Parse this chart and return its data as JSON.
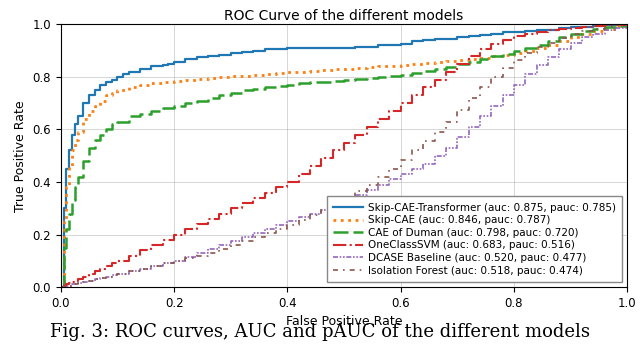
{
  "title": "ROC Curve of the different models",
  "xlabel": "False Positive Rate",
  "ylabel": "True Positive Rate",
  "caption": "Fig. 3: ROC curves, AUC and pAUC of the different models",
  "models": [
    {
      "name": "Skip-CAE-Transformer (auc: 0.875, pauc: 0.785)",
      "color": "#1f77b4",
      "linestyle": "-",
      "linewidth": 1.5,
      "fpr": [
        0.0,
        0.005,
        0.01,
        0.015,
        0.02,
        0.025,
        0.03,
        0.04,
        0.05,
        0.06,
        0.07,
        0.08,
        0.09,
        0.1,
        0.11,
        0.12,
        0.13,
        0.14,
        0.15,
        0.16,
        0.17,
        0.18,
        0.19,
        0.2,
        0.22,
        0.24,
        0.26,
        0.28,
        0.3,
        0.32,
        0.34,
        0.36,
        0.38,
        0.4,
        0.42,
        0.44,
        0.46,
        0.48,
        0.5,
        0.52,
        0.54,
        0.56,
        0.58,
        0.6,
        0.62,
        0.64,
        0.66,
        0.68,
        0.7,
        0.72,
        0.74,
        0.76,
        0.78,
        0.8,
        0.82,
        0.84,
        0.86,
        0.88,
        0.9,
        0.92,
        0.94,
        0.96,
        0.98,
        1.0
      ],
      "tpr": [
        0.0,
        0.3,
        0.45,
        0.52,
        0.58,
        0.62,
        0.65,
        0.7,
        0.73,
        0.75,
        0.77,
        0.78,
        0.79,
        0.8,
        0.81,
        0.82,
        0.82,
        0.83,
        0.83,
        0.84,
        0.84,
        0.845,
        0.85,
        0.855,
        0.87,
        0.875,
        0.88,
        0.885,
        0.89,
        0.895,
        0.9,
        0.905,
        0.905,
        0.91,
        0.91,
        0.91,
        0.91,
        0.91,
        0.91,
        0.915,
        0.915,
        0.92,
        0.92,
        0.925,
        0.935,
        0.94,
        0.945,
        0.945,
        0.95,
        0.955,
        0.96,
        0.965,
        0.97,
        0.97,
        0.975,
        0.98,
        0.98,
        0.985,
        0.99,
        0.99,
        0.995,
        0.997,
        0.998,
        1.0
      ]
    },
    {
      "name": "Skip-CAE (auc: 0.846, pauc: 0.787)",
      "color": "#ff7f0e",
      "linestyle": "dotted",
      "linewidth": 1.8,
      "fpr": [
        0.0,
        0.005,
        0.01,
        0.015,
        0.02,
        0.025,
        0.03,
        0.04,
        0.05,
        0.06,
        0.07,
        0.08,
        0.09,
        0.1,
        0.12,
        0.14,
        0.16,
        0.18,
        0.2,
        0.22,
        0.24,
        0.26,
        0.28,
        0.3,
        0.32,
        0.34,
        0.36,
        0.38,
        0.4,
        0.42,
        0.44,
        0.46,
        0.48,
        0.5,
        0.52,
        0.54,
        0.56,
        0.58,
        0.6,
        0.62,
        0.64,
        0.66,
        0.68,
        0.7,
        0.72,
        0.74,
        0.76,
        0.78,
        0.8,
        0.82,
        0.84,
        0.86,
        0.88,
        0.9,
        0.92,
        0.94,
        0.96,
        0.98,
        1.0
      ],
      "tpr": [
        0.0,
        0.25,
        0.38,
        0.46,
        0.52,
        0.56,
        0.59,
        0.64,
        0.67,
        0.69,
        0.71,
        0.73,
        0.74,
        0.75,
        0.76,
        0.77,
        0.775,
        0.78,
        0.785,
        0.79,
        0.793,
        0.796,
        0.799,
        0.802,
        0.805,
        0.808,
        0.811,
        0.814,
        0.817,
        0.82,
        0.823,
        0.826,
        0.829,
        0.832,
        0.835,
        0.837,
        0.84,
        0.842,
        0.845,
        0.848,
        0.852,
        0.856,
        0.86,
        0.864,
        0.868,
        0.872,
        0.878,
        0.884,
        0.89,
        0.9,
        0.91,
        0.92,
        0.935,
        0.95,
        0.963,
        0.975,
        0.984,
        0.992,
        1.0
      ]
    },
    {
      "name": "CAE of Duman (auc: 0.798, pauc: 0.720)",
      "color": "#2ca02c",
      "linestyle": "--",
      "linewidth": 1.8,
      "fpr": [
        0.0,
        0.005,
        0.01,
        0.015,
        0.02,
        0.025,
        0.03,
        0.04,
        0.05,
        0.06,
        0.07,
        0.08,
        0.09,
        0.1,
        0.12,
        0.14,
        0.16,
        0.18,
        0.2,
        0.22,
        0.24,
        0.26,
        0.28,
        0.3,
        0.32,
        0.34,
        0.36,
        0.38,
        0.4,
        0.42,
        0.44,
        0.46,
        0.48,
        0.5,
        0.52,
        0.54,
        0.56,
        0.58,
        0.6,
        0.62,
        0.64,
        0.66,
        0.68,
        0.7,
        0.72,
        0.74,
        0.76,
        0.78,
        0.8,
        0.82,
        0.84,
        0.86,
        0.88,
        0.9,
        0.92,
        0.94,
        0.96,
        0.98,
        1.0
      ],
      "tpr": [
        0.0,
        0.15,
        0.22,
        0.28,
        0.33,
        0.38,
        0.42,
        0.48,
        0.53,
        0.56,
        0.58,
        0.6,
        0.62,
        0.63,
        0.65,
        0.66,
        0.67,
        0.68,
        0.69,
        0.7,
        0.71,
        0.72,
        0.73,
        0.74,
        0.75,
        0.755,
        0.76,
        0.765,
        0.77,
        0.775,
        0.78,
        0.782,
        0.785,
        0.788,
        0.792,
        0.796,
        0.8,
        0.804,
        0.808,
        0.815,
        0.822,
        0.83,
        0.838,
        0.848,
        0.858,
        0.868,
        0.878,
        0.888,
        0.898,
        0.91,
        0.922,
        0.936,
        0.95,
        0.963,
        0.974,
        0.982,
        0.989,
        0.995,
        1.0
      ]
    },
    {
      "name": "OneClassSVM (auc: 0.683, pauc: 0.516)",
      "color": "#d62728",
      "linestyle": "-.",
      "linewidth": 1.5,
      "fpr": [
        0.0,
        0.005,
        0.01,
        0.015,
        0.02,
        0.025,
        0.03,
        0.04,
        0.05,
        0.06,
        0.07,
        0.08,
        0.09,
        0.1,
        0.12,
        0.14,
        0.16,
        0.18,
        0.2,
        0.22,
        0.24,
        0.26,
        0.28,
        0.3,
        0.32,
        0.34,
        0.36,
        0.38,
        0.4,
        0.42,
        0.44,
        0.46,
        0.48,
        0.5,
        0.52,
        0.54,
        0.56,
        0.58,
        0.6,
        0.62,
        0.64,
        0.66,
        0.68,
        0.7,
        0.72,
        0.74,
        0.76,
        0.78,
        0.8,
        0.82,
        0.84,
        0.86,
        0.88,
        0.9,
        0.92,
        0.94,
        0.96,
        0.98,
        1.0
      ],
      "tpr": [
        0.0,
        0.005,
        0.01,
        0.015,
        0.02,
        0.025,
        0.03,
        0.04,
        0.05,
        0.06,
        0.07,
        0.08,
        0.09,
        0.1,
        0.12,
        0.14,
        0.16,
        0.18,
        0.2,
        0.22,
        0.24,
        0.26,
        0.28,
        0.3,
        0.32,
        0.34,
        0.36,
        0.38,
        0.4,
        0.43,
        0.46,
        0.49,
        0.52,
        0.55,
        0.58,
        0.61,
        0.64,
        0.67,
        0.7,
        0.73,
        0.76,
        0.79,
        0.82,
        0.85,
        0.88,
        0.905,
        0.925,
        0.94,
        0.955,
        0.965,
        0.972,
        0.978,
        0.983,
        0.988,
        0.991,
        0.994,
        0.996,
        0.998,
        1.0
      ]
    },
    {
      "name": "DCASE Baseline (auc: 0.520, pauc: 0.477)",
      "color": "#9467bd",
      "linestyle": "--",
      "linewidth": 1.2,
      "dash_dot_dot": true,
      "fpr": [
        0.0,
        0.01,
        0.02,
        0.03,
        0.04,
        0.05,
        0.06,
        0.07,
        0.08,
        0.09,
        0.1,
        0.12,
        0.14,
        0.16,
        0.18,
        0.2,
        0.22,
        0.24,
        0.26,
        0.28,
        0.3,
        0.32,
        0.34,
        0.36,
        0.38,
        0.4,
        0.42,
        0.44,
        0.46,
        0.48,
        0.5,
        0.52,
        0.54,
        0.56,
        0.58,
        0.6,
        0.62,
        0.64,
        0.66,
        0.68,
        0.7,
        0.72,
        0.74,
        0.76,
        0.78,
        0.8,
        0.82,
        0.84,
        0.86,
        0.88,
        0.9,
        0.92,
        0.94,
        0.96,
        0.98,
        1.0
      ],
      "tpr": [
        0.0,
        0.005,
        0.01,
        0.015,
        0.02,
        0.025,
        0.03,
        0.035,
        0.04,
        0.045,
        0.05,
        0.06,
        0.07,
        0.08,
        0.09,
        0.1,
        0.115,
        0.13,
        0.145,
        0.16,
        0.175,
        0.19,
        0.205,
        0.22,
        0.235,
        0.25,
        0.265,
        0.28,
        0.295,
        0.31,
        0.33,
        0.35,
        0.37,
        0.39,
        0.41,
        0.43,
        0.45,
        0.47,
        0.5,
        0.53,
        0.57,
        0.61,
        0.65,
        0.69,
        0.73,
        0.77,
        0.81,
        0.845,
        0.875,
        0.905,
        0.93,
        0.95,
        0.965,
        0.978,
        0.988,
        1.0
      ]
    },
    {
      "name": "Isolation Forest (auc: 0.518, pauc: 0.474)",
      "color": "#8c564b",
      "linestyle": "-.",
      "linewidth": 1.2,
      "fpr": [
        0.0,
        0.01,
        0.02,
        0.03,
        0.04,
        0.05,
        0.06,
        0.07,
        0.08,
        0.09,
        0.1,
        0.12,
        0.14,
        0.16,
        0.18,
        0.2,
        0.22,
        0.24,
        0.26,
        0.28,
        0.3,
        0.32,
        0.34,
        0.36,
        0.38,
        0.4,
        0.42,
        0.44,
        0.46,
        0.48,
        0.5,
        0.52,
        0.54,
        0.56,
        0.58,
        0.6,
        0.62,
        0.64,
        0.66,
        0.68,
        0.7,
        0.72,
        0.74,
        0.76,
        0.78,
        0.8,
        0.82,
        0.84,
        0.86,
        0.88,
        0.9,
        0.92,
        0.94,
        0.96,
        0.98,
        1.0
      ],
      "tpr": [
        0.0,
        0.005,
        0.01,
        0.015,
        0.02,
        0.025,
        0.03,
        0.035,
        0.04,
        0.045,
        0.05,
        0.06,
        0.07,
        0.08,
        0.09,
        0.1,
        0.11,
        0.12,
        0.13,
        0.145,
        0.16,
        0.175,
        0.19,
        0.205,
        0.22,
        0.235,
        0.255,
        0.275,
        0.295,
        0.315,
        0.34,
        0.365,
        0.39,
        0.42,
        0.45,
        0.485,
        0.52,
        0.555,
        0.59,
        0.63,
        0.675,
        0.72,
        0.762,
        0.8,
        0.835,
        0.865,
        0.89,
        0.912,
        0.93,
        0.948,
        0.963,
        0.975,
        0.984,
        0.991,
        0.996,
        1.0
      ]
    }
  ],
  "xlim": [
    0.0,
    1.0
  ],
  "ylim": [
    0.0,
    1.0
  ],
  "xticks": [
    0.0,
    0.2,
    0.4,
    0.6,
    0.8,
    1.0
  ],
  "yticks": [
    0.0,
    0.2,
    0.4,
    0.6,
    0.8,
    1.0
  ],
  "grid": true,
  "legend_loc": "lower right",
  "fig_caption_fontsize": 13,
  "title_fontsize": 10,
  "axis_label_fontsize": 9,
  "tick_fontsize": 8.5,
  "legend_fontsize": 7.5
}
